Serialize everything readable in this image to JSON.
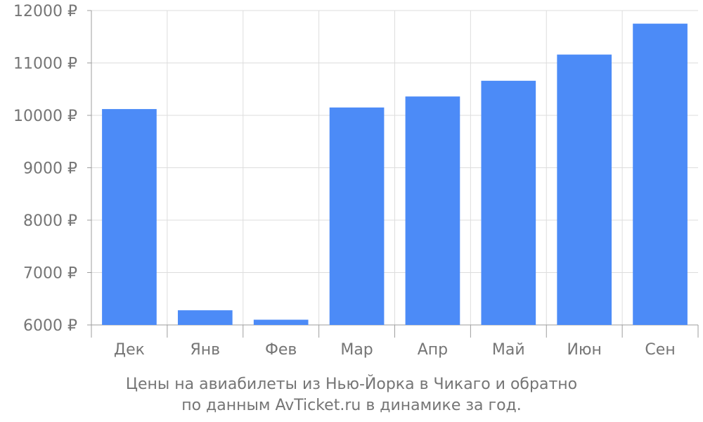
{
  "chart_data": {
    "type": "bar",
    "categories": [
      "Дек",
      "Янв",
      "Фев",
      "Мар",
      "Апр",
      "Май",
      "Июн",
      "Сен"
    ],
    "values": [
      10120,
      6280,
      6100,
      10150,
      10360,
      10660,
      11160,
      11750
    ],
    "ylim": [
      6000,
      12000
    ],
    "yticks": [
      6000,
      7000,
      8000,
      9000,
      10000,
      11000,
      12000
    ],
    "ytick_labels": [
      "6000 ₽",
      "7000 ₽",
      "8000 ₽",
      "9000 ₽",
      "10000 ₽",
      "11000 ₽",
      "12000 ₽"
    ],
    "bar_color": "#4c8bf7",
    "grid": true
  },
  "caption": {
    "line1": "Цены на авиабилеты из Нью-Йорка в Чикаго и обратно",
    "line2": "по данным AvTicket.ru в динамике за год."
  }
}
